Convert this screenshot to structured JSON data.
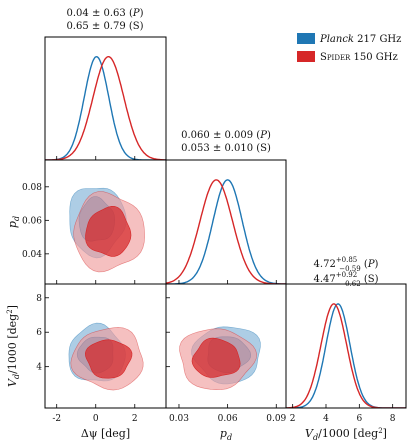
{
  "chart_data": {
    "type": "corner",
    "legend_position": "top-right",
    "series": [
      {
        "name": "Planck 217 GHz",
        "name_parts": {
          "main": "Planck",
          "rest": " 217 GHz"
        },
        "color": "#1f77b4",
        "fill": "#8ab8da"
      },
      {
        "name": "Spider 150 GHz",
        "name_parts": {
          "main": "Spider",
          "rest": " 150 GHz"
        },
        "color": "#d62728",
        "fill": "#ef9a9a"
      }
    ],
    "parameters": [
      {
        "key": "dpsi",
        "label": "Δψ [deg]",
        "range": [
          -2.6,
          3.6
        ],
        "ticks": [
          "-2",
          "0",
          "2"
        ],
        "tick_values": [
          -2,
          0,
          2
        ],
        "title_lines": [
          "0.04 ± 0.63 (P)",
          "0.65 ± 0.79 (S)"
        ],
        "marginals": [
          {
            "series": 0,
            "mean": 0.04,
            "sigma": 0.63
          },
          {
            "series": 1,
            "mean": 0.65,
            "sigma": 0.79
          }
        ]
      },
      {
        "key": "pd",
        "label": "p_d",
        "label_main": "p",
        "label_sub": "d",
        "range": [
          0.022,
          0.096
        ],
        "ticks": [
          "0.03",
          "0.06",
          "0.09"
        ],
        "tick_values": [
          0.03,
          0.06,
          0.09
        ],
        "y_ticks": [
          "0.04",
          "0.06",
          "0.08"
        ],
        "y_tick_values": [
          0.04,
          0.06,
          0.08
        ],
        "title_lines": [
          "0.060 ± 0.009 (P)",
          "0.053 ± 0.010 (S)"
        ],
        "marginals": [
          {
            "series": 0,
            "mean": 0.06,
            "sigma": 0.009
          },
          {
            "series": 1,
            "mean": 0.053,
            "sigma": 0.01
          }
        ]
      },
      {
        "key": "vd",
        "label": "V_d/1000 [deg^2]",
        "label_main": "V",
        "label_sub": "d",
        "label_rest": "/1000 [deg",
        "label_sup": "2",
        "label_end": "]",
        "range": [
          1.6,
          8.8
        ],
        "ticks": [
          "2",
          "4",
          "6",
          "8"
        ],
        "tick_values": [
          2,
          4,
          6,
          8
        ],
        "y_ticks": [
          "4",
          "6",
          "8"
        ],
        "y_tick_values": [
          4,
          6,
          8
        ],
        "title_lines": [
          "4.72 +0.85 −0.59 (P)",
          "4.47 +0.92 −0.62 (S)"
        ],
        "title_parts": [
          {
            "value": "4.72",
            "plus": "+0.85",
            "minus": "−0.59",
            "tag": "(P)"
          },
          {
            "value": "4.47",
            "plus": "+0.92",
            "minus": "−0.62",
            "tag": "(S)"
          }
        ],
        "marginals": [
          {
            "series": 0,
            "mean": 4.72,
            "sigma": 0.72
          },
          {
            "series": 1,
            "mean": 4.47,
            "sigma": 0.77
          }
        ]
      }
    ],
    "joint_contours": [
      {
        "x": "dpsi",
        "y": "pd",
        "series": 0,
        "center": [
          0.04,
          0.06
        ],
        "sigma": [
          0.63,
          0.009
        ]
      },
      {
        "x": "dpsi",
        "y": "pd",
        "series": 1,
        "center": [
          0.65,
          0.053
        ],
        "sigma": [
          0.79,
          0.01
        ]
      },
      {
        "x": "dpsi",
        "y": "vd",
        "series": 0,
        "center": [
          0.04,
          4.72
        ],
        "sigma": [
          0.63,
          0.72
        ]
      },
      {
        "x": "dpsi",
        "y": "vd",
        "series": 1,
        "center": [
          0.65,
          4.47
        ],
        "sigma": [
          0.79,
          0.77
        ]
      },
      {
        "x": "pd",
        "y": "vd",
        "series": 0,
        "center": [
          0.06,
          4.72
        ],
        "sigma": [
          0.009,
          0.72
        ]
      },
      {
        "x": "pd",
        "y": "vd",
        "series": 1,
        "center": [
          0.053,
          4.47
        ],
        "sigma": [
          0.01,
          0.77
        ]
      }
    ],
    "contour_levels": [
      "68%",
      "95%"
    ]
  }
}
